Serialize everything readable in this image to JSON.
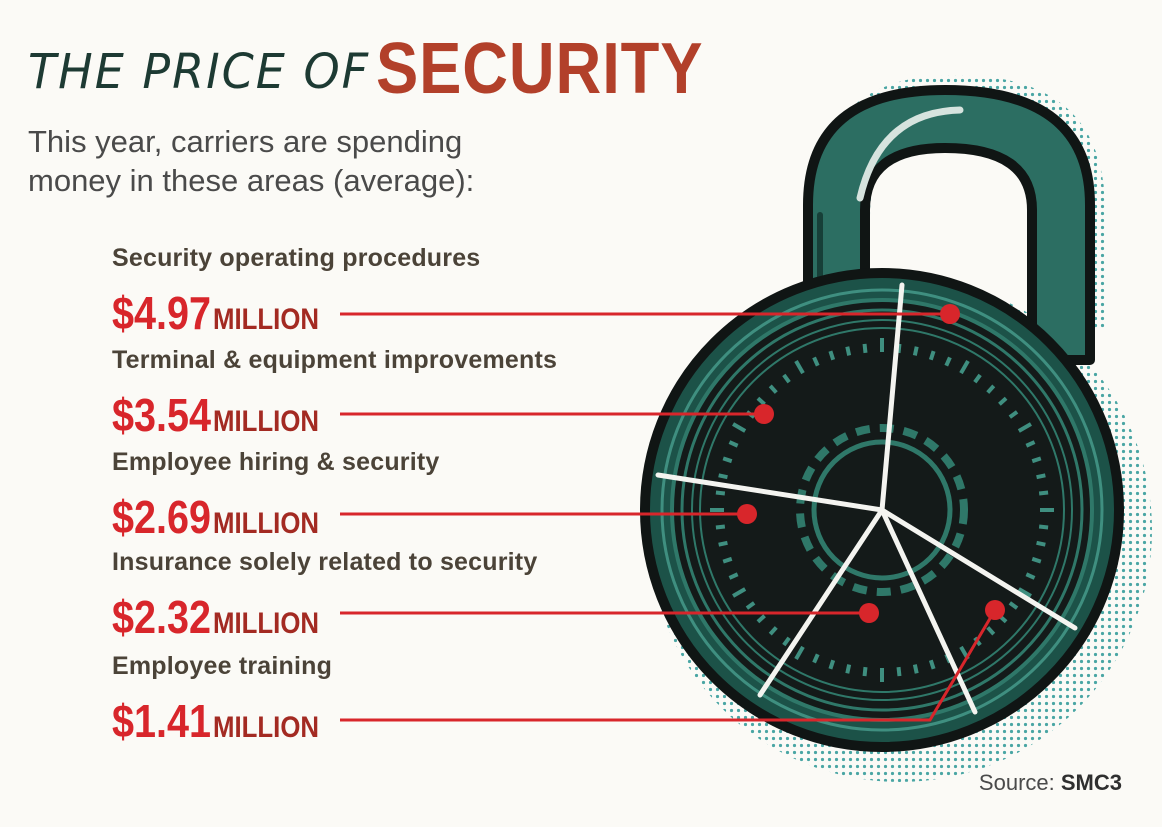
{
  "chart_data": {
    "type": "bar",
    "title_prefix": "THE PRICE OF",
    "title_accent": "SECURITY",
    "subtitle": "This year, carriers are spending money in these areas (average):",
    "unit": "MILLION",
    "categories": [
      "Security operating procedures",
      "Terminal & equipment improvements",
      "Employee hiring & security",
      "Insurance solely related to security",
      "Employee training"
    ],
    "values": [
      4.97,
      3.54,
      2.69,
      2.32,
      1.41
    ],
    "value_labels": [
      "$4.97",
      "$3.54",
      "$2.69",
      "$2.32",
      "$1.41"
    ],
    "source_label": "Source:",
    "source_name": "SMC3"
  },
  "colors": {
    "accent_red": "#d8262b",
    "title_red": "#b2402a",
    "title_dark": "#1d3a33",
    "lock_teal": "#2c6e62",
    "lock_dark": "#141a19"
  },
  "illustration": "padlock-icon"
}
